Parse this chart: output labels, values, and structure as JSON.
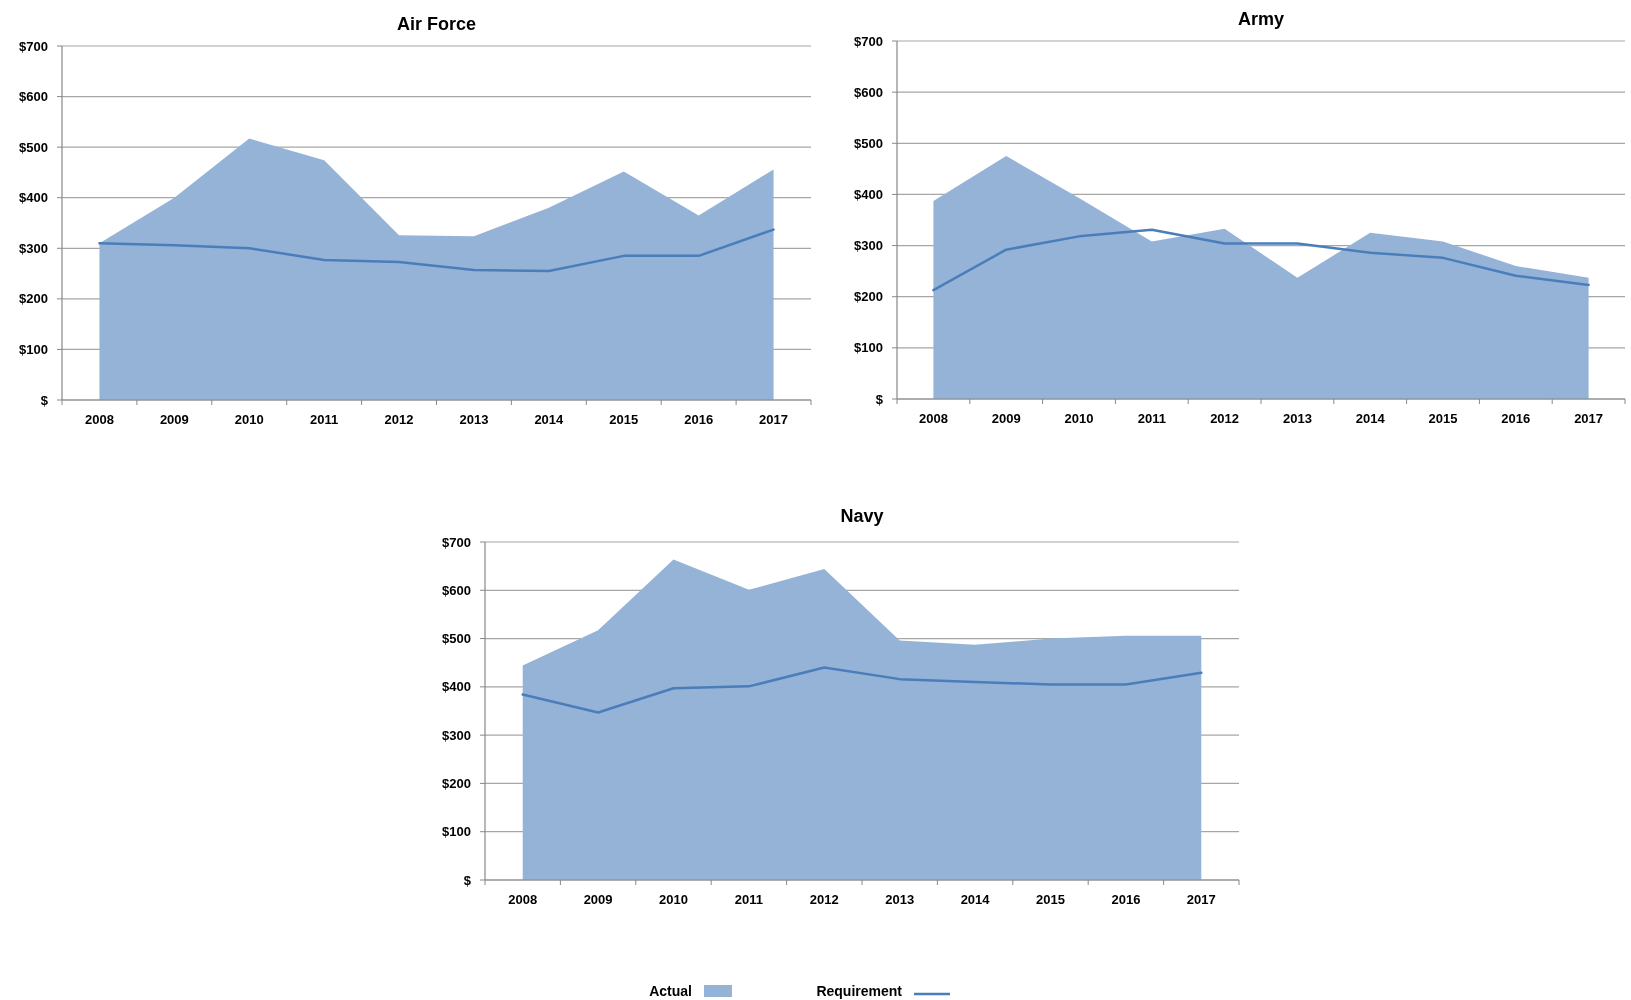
{
  "chart_data": [
    {
      "type": "area",
      "title": "Air Force",
      "categories": [
        "2008",
        "2009",
        "2010",
        "2011",
        "2012",
        "2013",
        "2014",
        "2015",
        "2016",
        "2017"
      ],
      "series": [
        {
          "color": "#95b3d7",
          "values": [
            310,
            400,
            517,
            474,
            326,
            324,
            380,
            452,
            365,
            456
          ]
        },
        {
          "type": "line",
          "color": "#4a7ebb",
          "values": [
            310,
            306,
            300,
            277,
            273,
            257,
            255,
            285,
            285,
            337
          ]
        }
      ],
      "ylim": [
        0,
        700
      ],
      "yticks": [
        {
          "value": 0,
          "label": "$"
        },
        {
          "value": 100,
          "label": "$100"
        },
        {
          "value": 200,
          "label": "$200"
        },
        {
          "value": 300,
          "label": "$300"
        },
        {
          "value": 400,
          "label": "$400"
        },
        {
          "value": 500,
          "label": "$500"
        },
        {
          "value": 600,
          "label": "$600"
        },
        {
          "value": 700,
          "label": "$700"
        }
      ],
      "grid": "y"
    },
    {
      "type": "area",
      "title": "Army",
      "categories": [
        "2008",
        "2009",
        "2010",
        "2011",
        "2012",
        "2013",
        "2014",
        "2015",
        "2016",
        "2017"
      ],
      "series": [
        {
          "color": "#95b3d7",
          "values": [
            387,
            475,
            393,
            308,
            333,
            237,
            325,
            308,
            260,
            237
          ]
        },
        {
          "type": "line",
          "color": "#4a7ebb",
          "values": [
            213,
            292,
            318,
            331,
            304,
            304,
            286,
            276,
            241,
            223
          ]
        }
      ],
      "ylim": [
        0,
        700
      ],
      "yticks": [
        {
          "value": 0,
          "label": "$"
        },
        {
          "value": 100,
          "label": "$100"
        },
        {
          "value": 200,
          "label": "$200"
        },
        {
          "value": 300,
          "label": "$300"
        },
        {
          "value": 400,
          "label": "$400"
        },
        {
          "value": 500,
          "label": "$500"
        },
        {
          "value": 600,
          "label": "$600"
        },
        {
          "value": 700,
          "label": "$700"
        }
      ],
      "grid": "y"
    },
    {
      "type": "area",
      "title": "Navy",
      "categories": [
        "2008",
        "2009",
        "2010",
        "2011",
        "2012",
        "2013",
        "2014",
        "2015",
        "2016",
        "2017"
      ],
      "series": [
        {
          "name": "Actual",
          "color": "#95b3d7",
          "values": [
            444,
            517,
            664,
            601,
            644,
            496,
            487,
            500,
            506,
            506
          ]
        },
        {
          "type": "line",
          "name": "Requirement",
          "color": "#4a7ebb",
          "values": [
            384,
            347,
            397,
            401,
            440,
            416,
            410,
            405,
            405,
            429
          ]
        }
      ],
      "ylim": [
        0,
        700
      ],
      "yticks": [
        {
          "value": 0,
          "label": "$"
        },
        {
          "value": 100,
          "label": "$100"
        },
        {
          "value": 200,
          "label": "$200"
        },
        {
          "value": 300,
          "label": "$300"
        },
        {
          "value": 400,
          "label": "$400"
        },
        {
          "value": 500,
          "label": "$500"
        },
        {
          "value": 600,
          "label": "$600"
        },
        {
          "value": 700,
          "label": "$700"
        }
      ],
      "grid": "y",
      "legend": "bottom"
    }
  ]
}
